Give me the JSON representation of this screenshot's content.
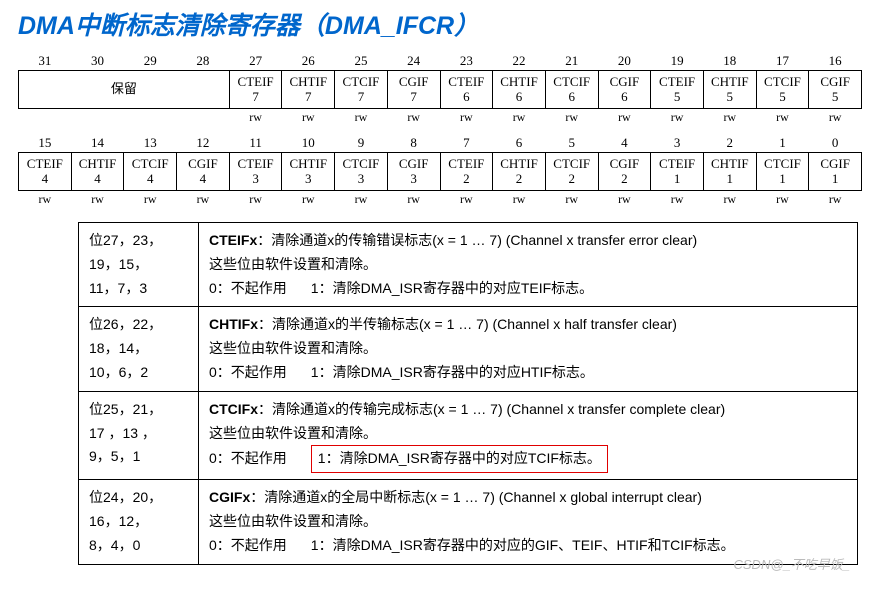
{
  "title": "DMA中断标志清除寄存器（DMA_IFCR）",
  "row1": {
    "nums": [
      "31",
      "30",
      "29",
      "28",
      "27",
      "26",
      "25",
      "24",
      "23",
      "22",
      "21",
      "20",
      "19",
      "18",
      "17",
      "16"
    ],
    "reserved": "保留",
    "cells": [
      "CTEIF\n7",
      "CHTIF\n7",
      "CTCIF\n7",
      "CGIF\n7",
      "CTEIF\n6",
      "CHTIF\n6",
      "CTCIF\n6",
      "CGIF\n6",
      "CTEIF\n5",
      "CHTIF\n5",
      "CTCIF\n5",
      "CGIF\n5"
    ],
    "rw": [
      "",
      "",
      "",
      "",
      "rw",
      "rw",
      "rw",
      "rw",
      "rw",
      "rw",
      "rw",
      "rw",
      "rw",
      "rw",
      "rw",
      "rw"
    ]
  },
  "row2": {
    "nums": [
      "15",
      "14",
      "13",
      "12",
      "11",
      "10",
      "9",
      "8",
      "7",
      "6",
      "5",
      "4",
      "3",
      "2",
      "1",
      "0"
    ],
    "cells": [
      "CTEIF\n4",
      "CHTIF\n4",
      "CTCIF\n4",
      "CGIF\n4",
      "CTEIF\n3",
      "CHTIF\n3",
      "CTCIF\n3",
      "CGIF\n3",
      "CTEIF\n2",
      "CHTIF\n2",
      "CTCIF\n2",
      "CGIF\n2",
      "CTEIF\n1",
      "CHTIF\n1",
      "CTCIF\n1",
      "CGIF\n1"
    ],
    "rw": [
      "rw",
      "rw",
      "rw",
      "rw",
      "rw",
      "rw",
      "rw",
      "rw",
      "rw",
      "rw",
      "rw",
      "rw",
      "rw",
      "rw",
      "rw",
      "rw"
    ]
  },
  "desc": [
    {
      "bits": "位27，23，\n19，15，\n11，7，3",
      "field": "CTEIFx",
      "head": "：清除通道x的传输错误标志(x = 1 … 7) (Channel x transfer error clear)",
      "l2": "这些位由软件设置和清除。",
      "opt0": "0：不起作用",
      "opt1": "1：清除DMA_ISR寄存器中的对应TEIF标志。",
      "hl": false
    },
    {
      "bits": "位26，22，\n18，14，\n10，6，2",
      "field": "CHTIFx",
      "head": "：清除通道x的半传输标志(x = 1 … 7) (Channel x half transfer clear)",
      "l2": "这些位由软件设置和清除。",
      "opt0": "0：不起作用",
      "opt1": "1：清除DMA_ISR寄存器中的对应HTIF标志。",
      "hl": false
    },
    {
      "bits": "位25，21，\n17 ，13 ，\n9，5，1",
      "field": "CTCIFx",
      "head": "：清除通道x的传输完成标志(x = 1 … 7) (Channel x transfer complete clear)",
      "l2": "这些位由软件设置和清除。",
      "opt0": "0：不起作用",
      "opt1": "1：清除DMA_ISR寄存器中的对应TCIF标志。",
      "hl": true
    },
    {
      "bits": "位24，20，\n16，12，\n8，4，0",
      "field": "CGIFx",
      "head": "：清除通道x的全局中断标志(x = 1 … 7) (Channel x global interrupt clear)",
      "l2": "这些位由软件设置和清除。",
      "opt0": "0：不起作用",
      "opt1": "1：清除DMA_ISR寄存器中的对应的GIF、TEIF、HTIF和TCIF标志。",
      "hl": false
    }
  ],
  "watermark": "CSDN@_不吃早饭_"
}
